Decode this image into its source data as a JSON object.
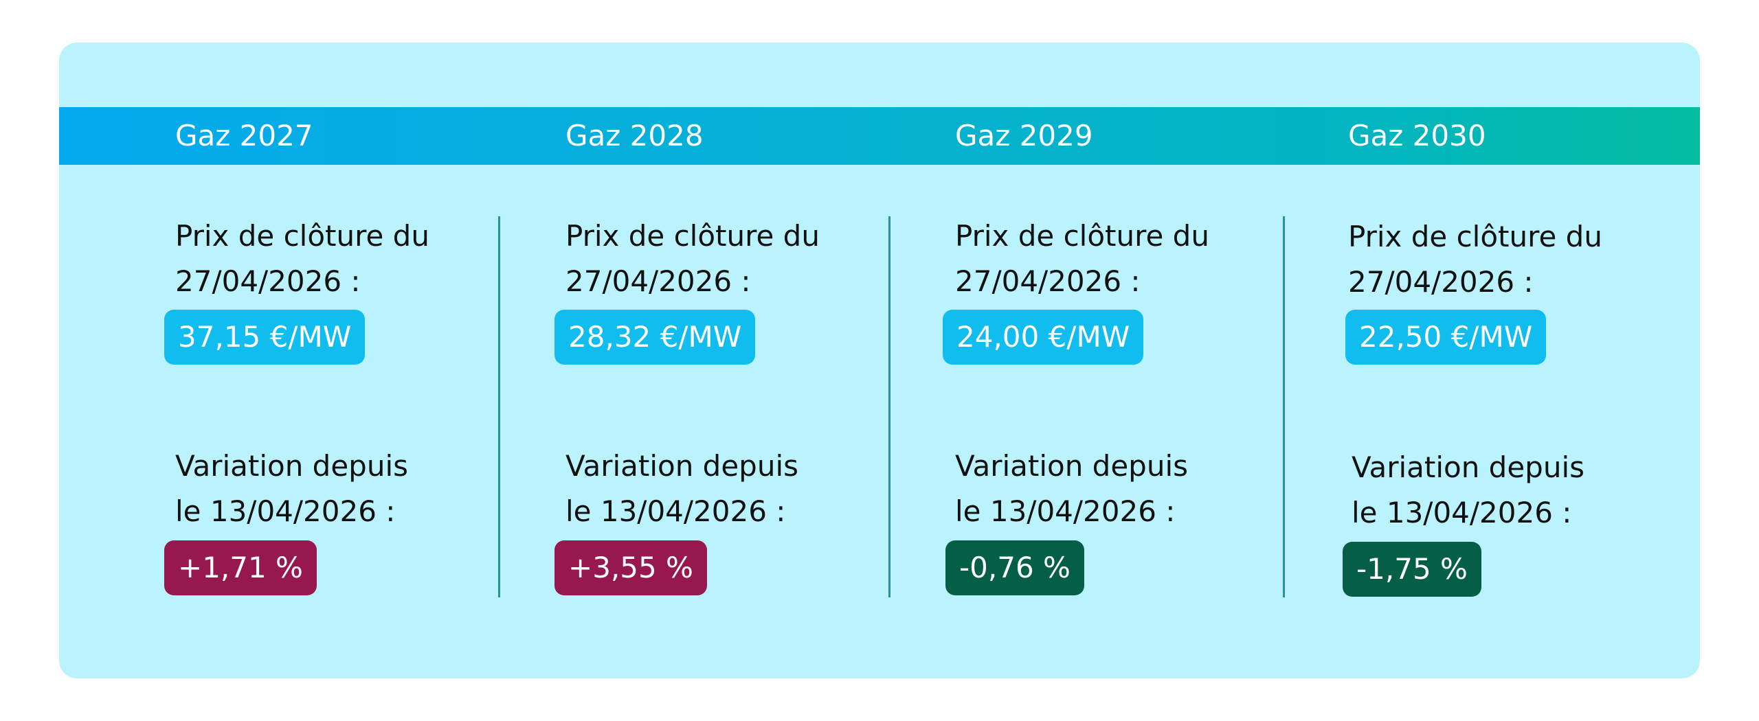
{
  "colors": {
    "card_background": "#baf2fd",
    "header_gradient_start": "#05a9ee",
    "header_gradient_end": "#04bca0",
    "price_badge": "#11bcee",
    "variation_up": "#96184f",
    "variation_down": "#045f46",
    "divider": "#2a8fa3"
  },
  "columns": [
    {
      "title": "Gaz 2027",
      "price_label_line1": "Prix de clôture du",
      "price_label_line2": "27/04/2026 :",
      "price": "37,15 €/MW",
      "variation_label_line1": "Variation depuis",
      "variation_label_line2": "le 13/04/2026 :",
      "variation": "+1,71 %",
      "variation_direction": "up"
    },
    {
      "title": "Gaz 2028",
      "price_label_line1": "Prix de clôture du",
      "price_label_line2": "27/04/2026 :",
      "price": "28,32 €/MW",
      "variation_label_line1": "Variation depuis",
      "variation_label_line2": "le 13/04/2026 :",
      "variation": "+3,55 %",
      "variation_direction": "up"
    },
    {
      "title": "Gaz 2029",
      "price_label_line1": "Prix de clôture du",
      "price_label_line2": "27/04/2026 :",
      "price": "24,00 €/MW",
      "variation_label_line1": "Variation depuis",
      "variation_label_line2": "le 13/04/2026 :",
      "variation": "-0,76 %",
      "variation_direction": "down"
    },
    {
      "title": "Gaz 2030",
      "price_label_line1": "Prix de clôture du",
      "price_label_line2": "27/04/2026 :",
      "price": "22,50 €/MW",
      "variation_label_line1": "Variation depuis",
      "variation_label_line2": "le 13/04/2026 :",
      "variation": "-1,75 %",
      "variation_direction": "down"
    }
  ]
}
